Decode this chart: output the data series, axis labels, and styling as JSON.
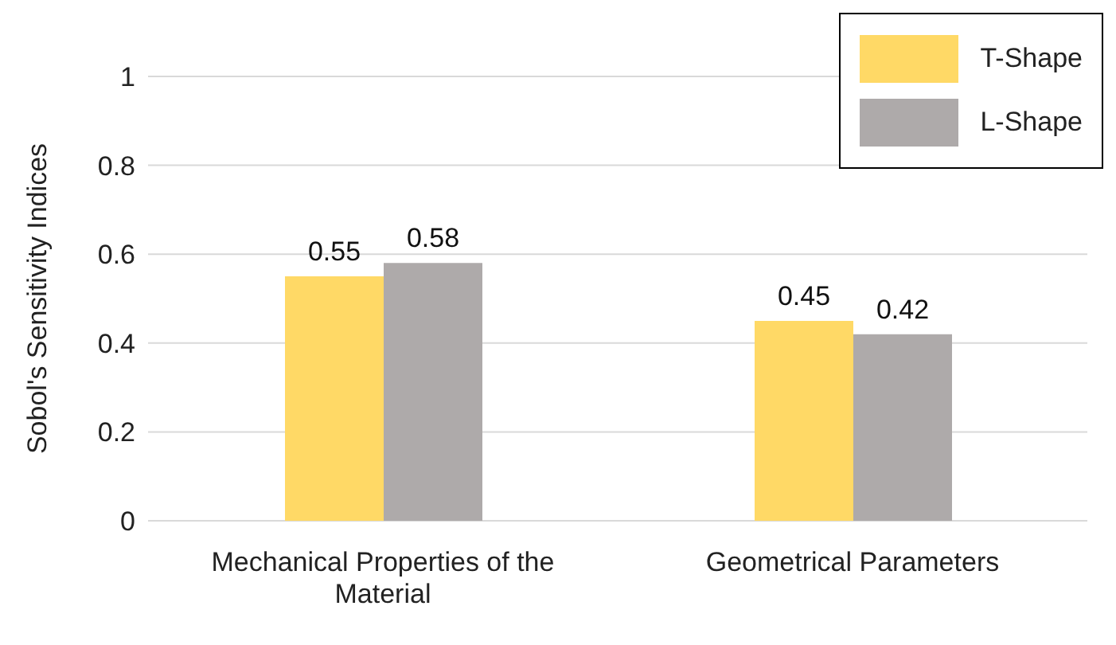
{
  "chart_data": {
    "type": "bar",
    "ylabel": "Sobol's Sensitivity Indices",
    "categories": [
      "Mechanical Properties of the Material",
      "Geometrical Parameters"
    ],
    "series": [
      {
        "name": "T-Shape",
        "color": "#ffd966",
        "values": [
          0.55,
          0.45
        ]
      },
      {
        "name": "L-Shape",
        "color": "#aeaaaa",
        "values": [
          0.58,
          0.42
        ]
      }
    ],
    "ylim": [
      0,
      1
    ],
    "yticks": [
      0,
      0.2,
      0.4,
      0.6,
      0.8,
      1
    ],
    "grid": "y",
    "legend": "top right",
    "data_labels": true
  }
}
